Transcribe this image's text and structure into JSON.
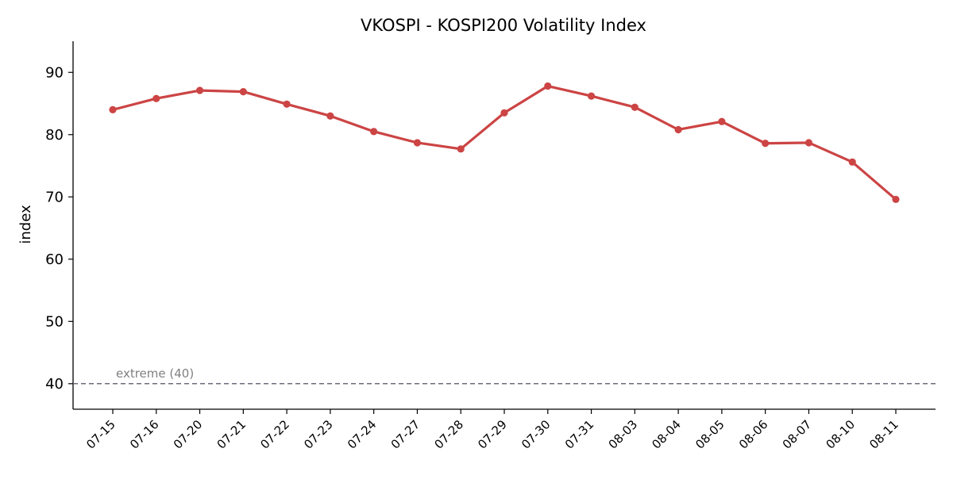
{
  "chart_data": {
    "type": "line",
    "title": "VKOSPI - KOSPI200 Volatility Index",
    "xlabel": "",
    "ylabel": "index",
    "categories": [
      "07-15",
      "07-16",
      "07-20",
      "07-21",
      "07-22",
      "07-23",
      "07-24",
      "07-27",
      "07-28",
      "07-29",
      "07-30",
      "07-31",
      "08-03",
      "08-04",
      "08-05",
      "08-06",
      "08-07",
      "08-10",
      "08-11"
    ],
    "series": [
      {
        "values": [
          84.0,
          85.8,
          87.1,
          86.9,
          84.9,
          83.0,
          80.5,
          78.7,
          77.7,
          83.5,
          87.8,
          86.2,
          84.4,
          80.8,
          82.1,
          78.6,
          78.7,
          75.6,
          69.6
        ],
        "color": "#cc4444"
      }
    ],
    "ylim": [
      35.9,
      95.0
    ],
    "yticks": [
      40,
      50,
      60,
      70,
      80,
      90
    ],
    "reference_line": {
      "value": 40,
      "label": "extreme (40)",
      "color": "#6b6b7b",
      "style": "dashed"
    },
    "grid": false,
    "legend": "none"
  }
}
